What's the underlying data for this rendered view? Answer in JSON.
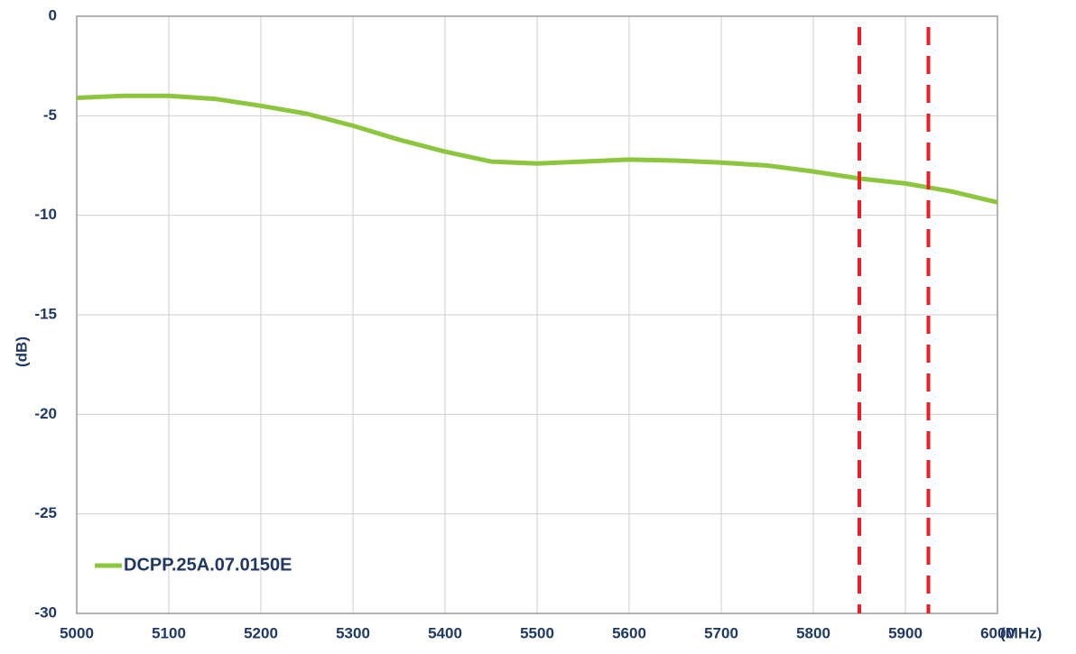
{
  "chart_data": {
    "type": "line",
    "x_label": "(MHz)",
    "y_label": "(dB)",
    "x": [
      5000,
      5050,
      5100,
      5150,
      5200,
      5250,
      5300,
      5350,
      5400,
      5450,
      5500,
      5550,
      5600,
      5650,
      5700,
      5750,
      5800,
      5850,
      5900,
      5950,
      6000
    ],
    "series": [
      {
        "name": "DCPP.25A.07.0150E",
        "color": "#8cc63f",
        "values": [
          -4.1,
          -4.0,
          -4.0,
          -4.15,
          -4.5,
          -4.9,
          -5.5,
          -6.2,
          -6.8,
          -7.3,
          -7.4,
          -7.3,
          -7.2,
          -7.25,
          -7.35,
          -7.5,
          -7.8,
          -8.15,
          -8.4,
          -8.8,
          -9.35
        ]
      }
    ],
    "markers": [
      5850,
      5925
    ],
    "marker_color": "#ee1c24",
    "xlim": [
      5000,
      6000
    ],
    "xticks": [
      5000,
      5100,
      5200,
      5300,
      5400,
      5500,
      5600,
      5700,
      5800,
      5900,
      6000
    ],
    "ylim": [
      -30,
      0
    ],
    "yticks": [
      0,
      -5,
      -10,
      -15,
      -20,
      -25,
      -30
    ],
    "grid": true,
    "legend": "lower left"
  }
}
